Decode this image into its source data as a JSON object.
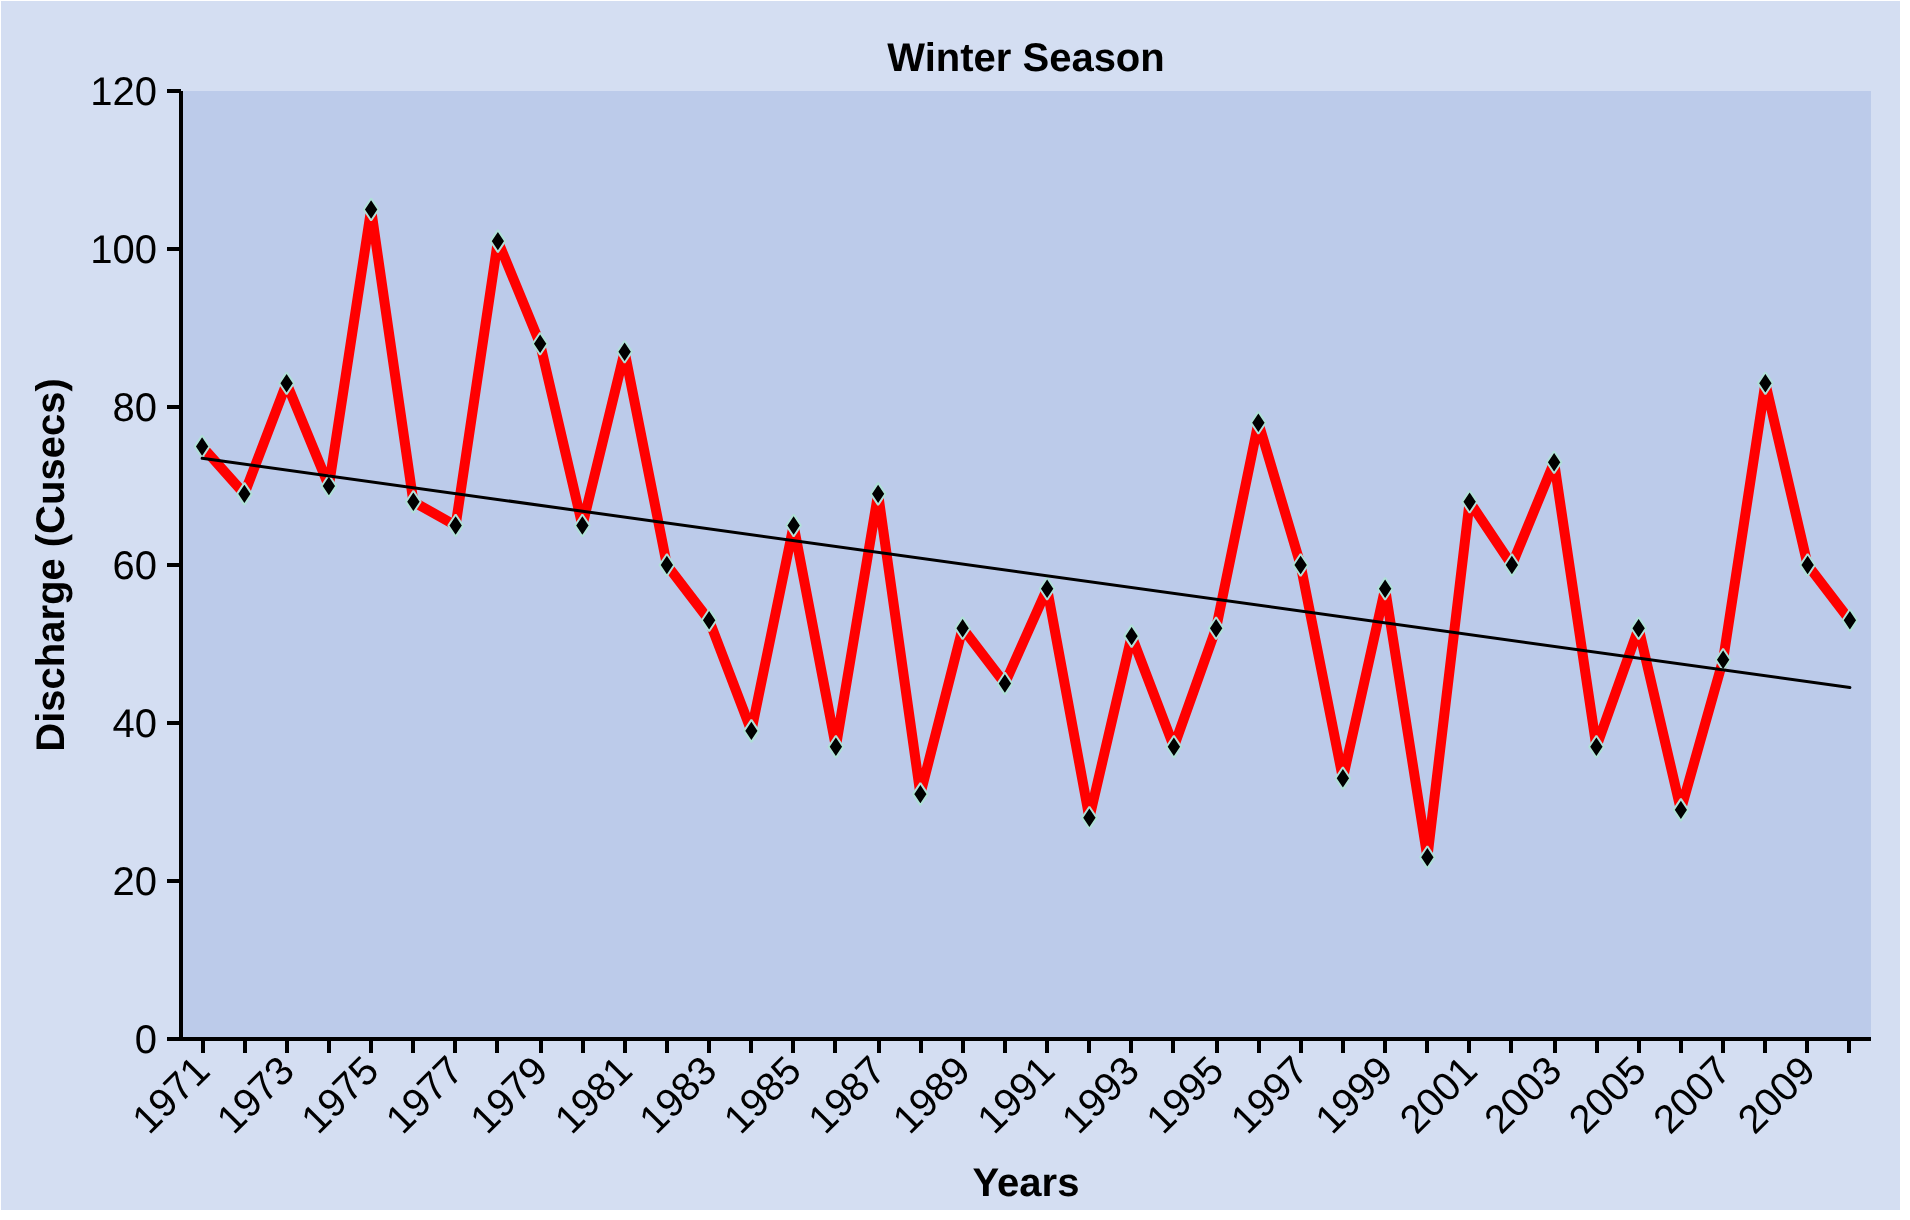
{
  "chart_data": {
    "type": "line",
    "title": "Winter Season",
    "xlabel": "Years",
    "ylabel": "Discharge (Cusecs)",
    "x": [
      1971,
      1972,
      1973,
      1974,
      1975,
      1976,
      1977,
      1978,
      1979,
      1980,
      1981,
      1982,
      1983,
      1984,
      1985,
      1986,
      1987,
      1988,
      1989,
      1990,
      1991,
      1992,
      1993,
      1994,
      1995,
      1996,
      1997,
      1998,
      1999,
      2000,
      2001,
      2002,
      2003,
      2004,
      2005,
      2006,
      2007,
      2008,
      2009,
      2010
    ],
    "series": [
      {
        "color": "#ff0000",
        "marker": "diamond",
        "values": [
          75,
          69,
          83,
          70,
          105,
          68,
          65,
          101,
          88,
          65,
          87,
          60,
          53,
          39,
          65,
          37,
          69,
          31,
          52,
          45,
          57,
          28,
          51,
          37,
          52,
          78,
          60,
          33,
          57,
          23,
          68,
          60,
          73,
          37,
          52,
          29,
          48,
          83,
          60,
          53
        ]
      },
      {
        "type": "line",
        "color": "#000000",
        "marker": "none",
        "x": [
          1971,
          2010
        ],
        "values": [
          73.5,
          44.5
        ]
      }
    ],
    "xlim": [
      1970.5,
      2010.5
    ],
    "xticks": [
      1971,
      {
        "value": 1972,
        "label": null
      },
      1973,
      {
        "value": 1974,
        "label": null
      },
      1975,
      {
        "value": 1976,
        "label": null
      },
      1977,
      {
        "value": 1978,
        "label": null
      },
      1979,
      {
        "value": 1980,
        "label": null
      },
      1981,
      {
        "value": 1982,
        "label": null
      },
      1983,
      {
        "value": 1984,
        "label": null
      },
      1985,
      {
        "value": 1986,
        "label": null
      },
      1987,
      {
        "value": 1988,
        "label": null
      },
      1989,
      {
        "value": 1990,
        "label": null
      },
      1991,
      {
        "value": 1992,
        "label": null
      },
      1993,
      {
        "value": 1994,
        "label": null
      },
      1995,
      {
        "value": 1996,
        "label": null
      },
      1997,
      {
        "value": 1998,
        "label": null
      },
      1999,
      {
        "value": 2000,
        "label": null
      },
      2001,
      {
        "value": 2002,
        "label": null
      },
      2003,
      {
        "value": 2004,
        "label": null
      },
      2005,
      {
        "value": 2006,
        "label": null
      },
      2007,
      {
        "value": 2008,
        "label": null
      },
      2009,
      {
        "value": 2010,
        "label": null
      }
    ],
    "ylim": [
      0,
      120
    ],
    "yticks": [
      0,
      20,
      40,
      60,
      80,
      100,
      120
    ],
    "grid": false,
    "line_style": "solid"
  }
}
